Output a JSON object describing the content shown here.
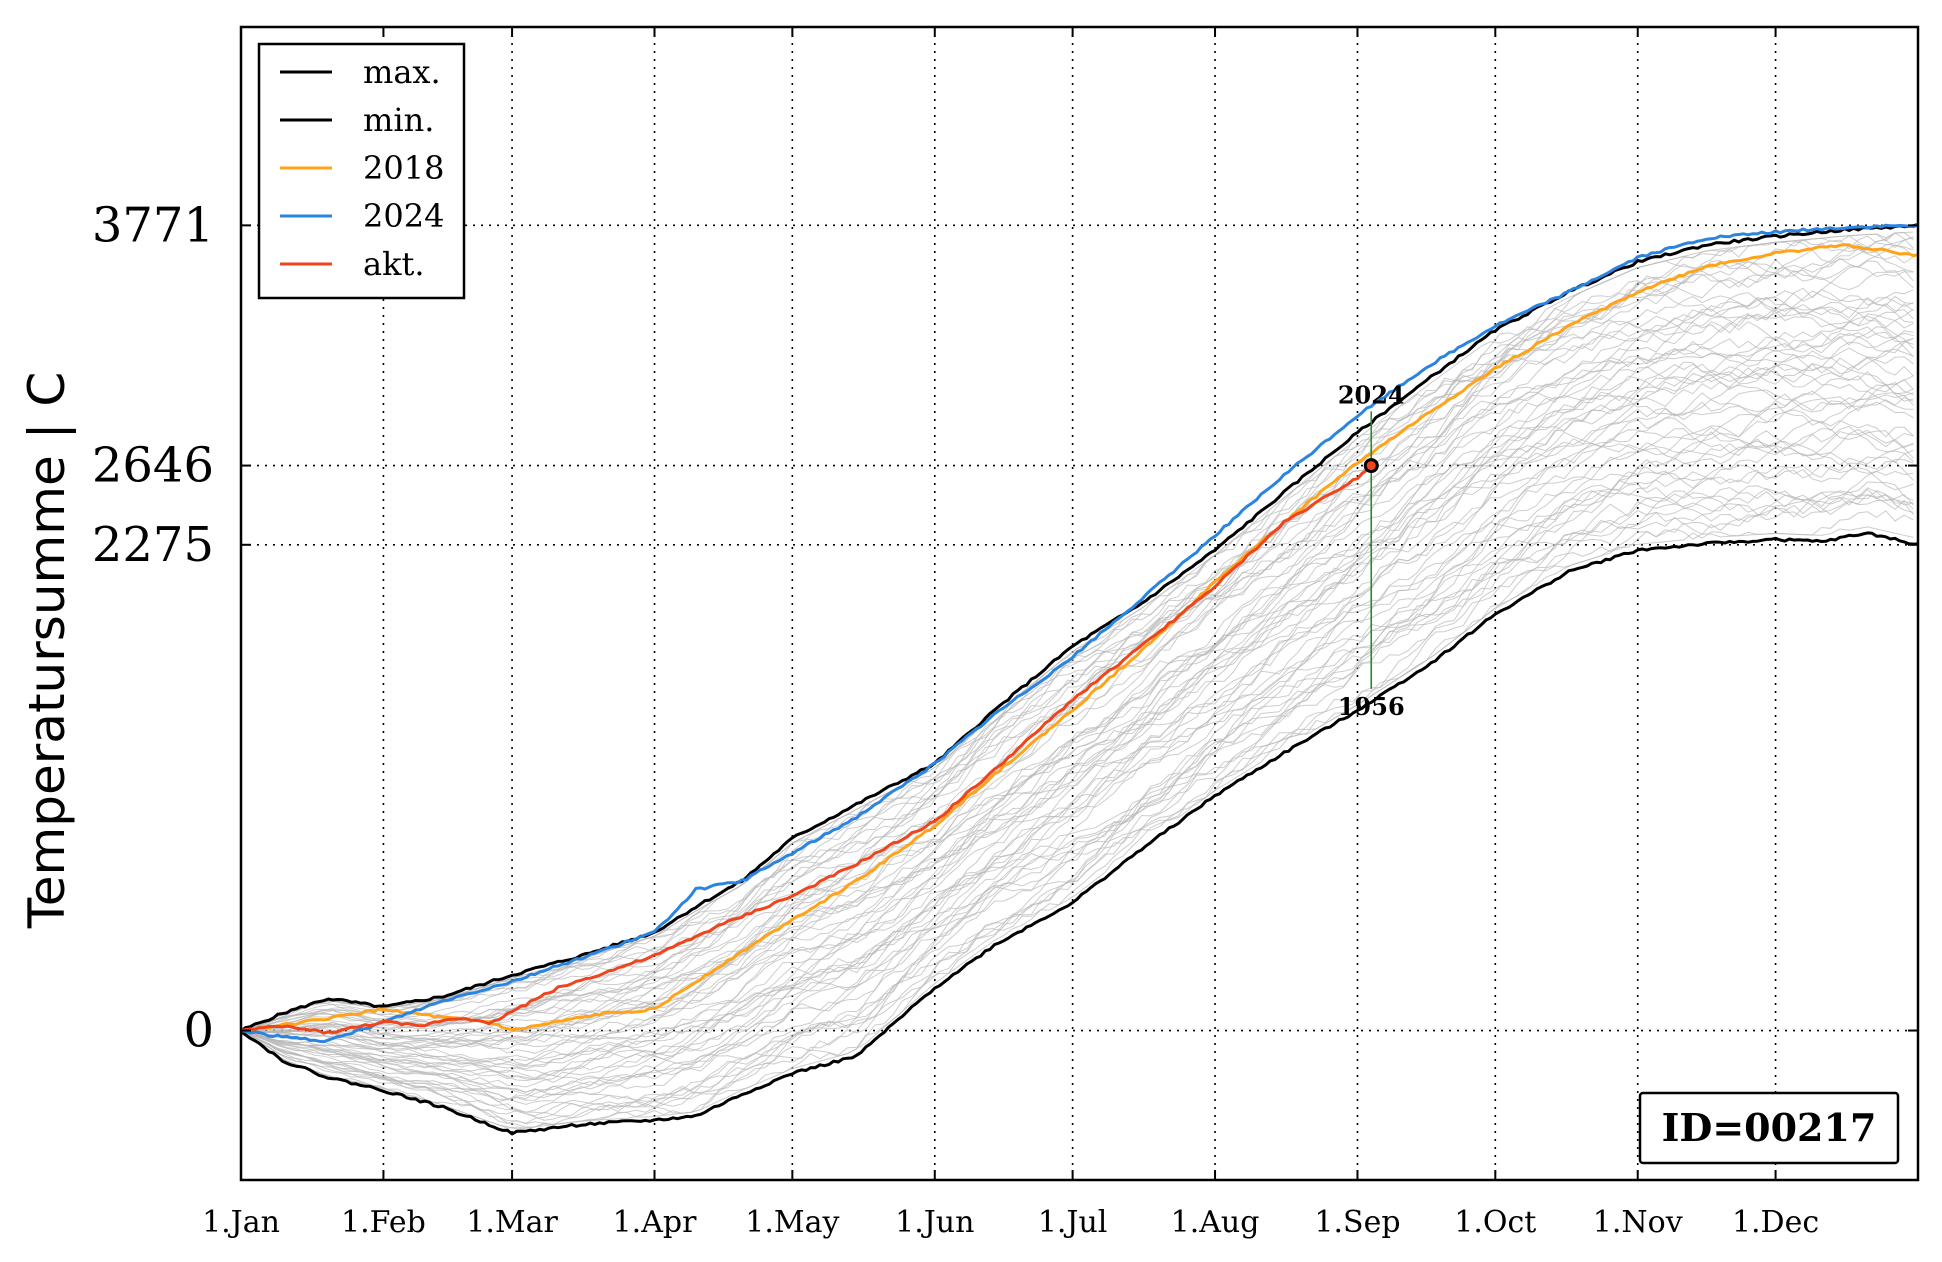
{
  "chart_data": {
    "type": "line",
    "title": "",
    "xlabel": "",
    "ylabel": "Temperatursumme | C",
    "x_unit": "day of year",
    "xlim": [
      1,
      366
    ],
    "ylim": [
      -700,
      4700
    ],
    "grid": true,
    "legend_position": "top-left",
    "x_ticks": [
      {
        "day": 1,
        "label": "1.Jan"
      },
      {
        "day": 32,
        "label": "1.Feb"
      },
      {
        "day": 60,
        "label": "1.Mar"
      },
      {
        "day": 91,
        "label": "1.Apr"
      },
      {
        "day": 121,
        "label": "1.May"
      },
      {
        "day": 152,
        "label": "1.Jun"
      },
      {
        "day": 182,
        "label": "1.Jul"
      },
      {
        "day": 213,
        "label": "1.Aug"
      },
      {
        "day": 244,
        "label": "1.Sep"
      },
      {
        "day": 274,
        "label": "1.Oct"
      },
      {
        "day": 305,
        "label": "1.Nov"
      },
      {
        "day": 335,
        "label": "1.Dec"
      }
    ],
    "y_ticks": [
      {
        "value": 0,
        "label": "0"
      },
      {
        "value": 2275,
        "label": "2275"
      },
      {
        "value": 2646,
        "label": "2646"
      },
      {
        "value": 3771,
        "label": "3771"
      }
    ],
    "series": [
      {
        "name": "max.",
        "color": "#000000",
        "x": [
          1,
          10,
          20,
          32,
          45,
          60,
          75,
          91,
          100,
          110,
          121,
          135,
          152,
          165,
          182,
          197,
          213,
          228,
          244,
          260,
          274,
          290,
          305,
          320,
          335,
          350,
          366
        ],
        "y": [
          0,
          80,
          150,
          110,
          160,
          260,
          350,
          460,
          580,
          700,
          900,
          1060,
          1250,
          1500,
          1800,
          2000,
          2250,
          2520,
          2800,
          3060,
          3280,
          3460,
          3600,
          3680,
          3720,
          3750,
          3771
        ]
      },
      {
        "name": "min.",
        "color": "#000000",
        "x": [
          1,
          10,
          20,
          32,
          45,
          60,
          75,
          91,
          100,
          110,
          121,
          135,
          152,
          165,
          182,
          197,
          213,
          228,
          244,
          260,
          274,
          290,
          305,
          320,
          335,
          345,
          355,
          366
        ],
        "y": [
          0,
          -140,
          -220,
          -280,
          -360,
          -480,
          -440,
          -420,
          -400,
          -300,
          -200,
          -120,
          200,
          400,
          600,
          850,
          1100,
          1300,
          1500,
          1720,
          1950,
          2150,
          2250,
          2280,
          2300,
          2290,
          2330,
          2275
        ]
      },
      {
        "name": "2018",
        "color": "#ffa31a",
        "x": [
          1,
          15,
          32,
          45,
          55,
          60,
          70,
          80,
          91,
          105,
          121,
          135,
          152,
          165,
          182,
          197,
          213,
          228,
          244,
          260,
          274,
          290,
          305,
          320,
          335,
          350,
          366
        ],
        "y": [
          0,
          40,
          100,
          60,
          40,
          0,
          40,
          80,
          100,
          300,
          520,
          700,
          960,
          1200,
          1500,
          1780,
          2100,
          2380,
          2660,
          2900,
          3100,
          3300,
          3460,
          3580,
          3640,
          3680,
          3630
        ]
      },
      {
        "name": "2024",
        "color": "#2a84e0",
        "x": [
          1,
          10,
          20,
          32,
          45,
          60,
          75,
          91,
          100,
          110,
          121,
          135,
          152,
          165,
          182,
          197,
          213,
          228,
          244,
          260,
          274,
          290,
          305,
          320,
          335,
          350,
          366
        ],
        "y": [
          0,
          -30,
          -50,
          40,
          140,
          230,
          340,
          460,
          660,
          700,
          830,
          1000,
          1250,
          1480,
          1750,
          2020,
          2320,
          2600,
          2880,
          3120,
          3300,
          3460,
          3620,
          3710,
          3740,
          3760,
          3771
        ]
      },
      {
        "name": "akt.",
        "color": "#f0451c",
        "x": [
          1,
          10,
          20,
          32,
          40,
          45,
          50,
          55,
          60,
          70,
          80,
          91,
          105,
          121,
          135,
          152,
          165,
          182,
          197,
          213,
          228,
          244,
          247
        ],
        "y": [
          0,
          20,
          -10,
          40,
          20,
          50,
          60,
          30,
          90,
          200,
          270,
          350,
          490,
          630,
          780,
          980,
          1220,
          1550,
          1800,
          2080,
          2380,
          2590,
          2646
        ]
      }
    ],
    "annotations": [
      {
        "type": "range",
        "day": 247,
        "y_low": 1600,
        "y_high": 2900,
        "top_label": "2024",
        "bottom_label": "1956",
        "color": "#228b22"
      },
      {
        "type": "marker",
        "day": 247,
        "value": 2646
      }
    ],
    "info_box": {
      "text": "ID=00217",
      "position": "bottom-right"
    }
  },
  "colors": {
    "background_lines": "#b8b8b8",
    "marker_fill": "#f0451c",
    "range_line": "#228b22"
  }
}
